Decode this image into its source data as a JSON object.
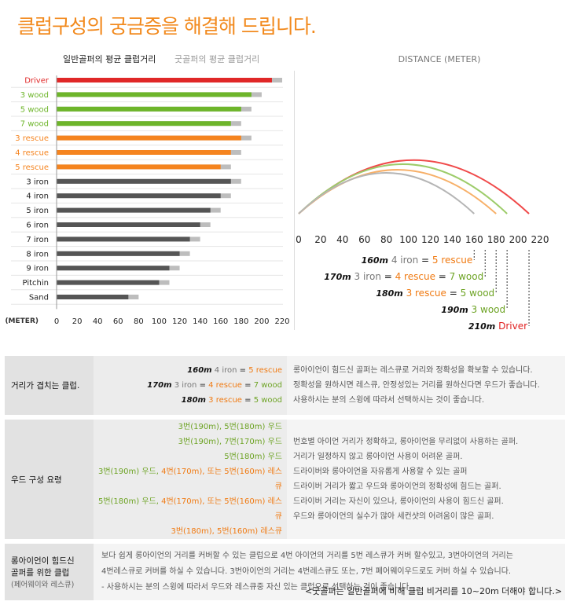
{
  "title": "클럽구성의 궁금증을 해결해 드립니다.",
  "colors": {
    "red": "#e02828",
    "green": "#6db52a",
    "orange": "#f5841f",
    "dark": "#555555",
    "light": "#bdbdbd",
    "arc_red": "#f04a4a",
    "arc_green": "#9dcc6a",
    "arc_orange": "#f7b069",
    "arc_gray": "#b5b5b5"
  },
  "chart_data": [
    {
      "type": "bar",
      "title": "",
      "legend": [
        "일반골퍼의 평균 클럽거리",
        "굿골퍼의 평균 클럽거리"
      ],
      "xlabel": "(METER)",
      "xlim": [
        0,
        220
      ],
      "xticks": [
        "0",
        "20",
        "40",
        "60",
        "80",
        "100",
        "120",
        "140",
        "160",
        "180",
        "200",
        "220"
      ],
      "categories": [
        "Driver",
        "3 wood",
        "5 wood",
        "7 wood",
        "3 rescue",
        "4 rescue",
        "5 rescue",
        "3 iron",
        "4 iron",
        "5 iron",
        "6 iron",
        "7 iron",
        "8 iron",
        "9 iron",
        "Pitchin",
        "Sand"
      ],
      "category_colors": [
        "red",
        "green",
        "green",
        "green",
        "orange",
        "orange",
        "orange",
        "dark",
        "dark",
        "dark",
        "dark",
        "dark",
        "dark",
        "dark",
        "dark",
        "dark"
      ],
      "series": [
        {
          "name": "일반골퍼의 평균 클럽거리",
          "values": [
            210,
            190,
            180,
            170,
            180,
            170,
            160,
            170,
            160,
            150,
            140,
            130,
            120,
            110,
            100,
            70
          ]
        },
        {
          "name": "굿골퍼의 평균 클럽거리",
          "values": [
            220,
            200,
            190,
            180,
            190,
            180,
            170,
            180,
            170,
            160,
            150,
            140,
            130,
            120,
            110,
            80
          ]
        }
      ]
    },
    {
      "type": "line",
      "title": "DISTANCE (METER)",
      "xlim": [
        0,
        220
      ],
      "xticks": [
        "0",
        "20",
        "40",
        "60",
        "80",
        "100",
        "120",
        "140",
        "160",
        "180",
        "200",
        "220"
      ],
      "series": [
        {
          "name": "Driver",
          "distance": 210,
          "apex": 105,
          "color": "arc_red"
        },
        {
          "name": "3 wood",
          "distance": 190,
          "apex": 97,
          "color": "arc_green"
        },
        {
          "name": "3 rescue",
          "distance": 180,
          "apex": 86,
          "color": "arc_orange"
        },
        {
          "name": "4 iron",
          "distance": 160,
          "apex": 80,
          "color": "arc_gray"
        }
      ],
      "annotations": [
        {
          "target": 160,
          "parts": [
            {
              "t": "160m",
              "c": "dist"
            },
            {
              "t": " 4 iron",
              "c": "c-gray"
            },
            {
              "t": " = ",
              "c": "c-black"
            },
            {
              "t": "5 rescue",
              "c": "c-orange"
            }
          ]
        },
        {
          "target": 170,
          "parts": [
            {
              "t": "170m",
              "c": "dist"
            },
            {
              "t": " 3 iron",
              "c": "c-gray"
            },
            {
              "t": " = ",
              "c": "c-black"
            },
            {
              "t": "4 rescue",
              "c": "c-orange"
            },
            {
              "t": " = ",
              "c": "c-black"
            },
            {
              "t": "7 wood",
              "c": "c-green"
            }
          ]
        },
        {
          "target": 180,
          "parts": [
            {
              "t": "180m",
              "c": "dist"
            },
            {
              "t": " 3 rescue",
              "c": "c-orange"
            },
            {
              "t": " = ",
              "c": "c-black"
            },
            {
              "t": "5 wood",
              "c": "c-green"
            }
          ]
        },
        {
          "target": 190,
          "parts": [
            {
              "t": "190m",
              "c": "dist"
            },
            {
              "t": "  3 wood",
              "c": "c-green"
            }
          ]
        },
        {
          "target": 210,
          "parts": [
            {
              "t": "210m",
              "c": "dist"
            },
            {
              "t": "  Driver",
              "c": "c-red"
            }
          ]
        }
      ]
    }
  ],
  "table": {
    "row1": {
      "header": "거리가 겹치는 클럽.",
      "mid": [
        [
          {
            "t": "160m",
            "c": "dist"
          },
          {
            "t": " 4 iron",
            "c": "c-gray"
          },
          {
            "t": " = ",
            "c": "c-black"
          },
          {
            "t": "5 rescue",
            "c": "c-orange"
          }
        ],
        [
          {
            "t": "170m",
            "c": "dist"
          },
          {
            "t": " 3 iron",
            "c": "c-gray"
          },
          {
            "t": " = ",
            "c": "c-black"
          },
          {
            "t": "4 rescue",
            "c": "c-orange"
          },
          {
            "t": " = ",
            "c": "c-black"
          },
          {
            "t": "7 wood",
            "c": "c-green"
          }
        ],
        [
          {
            "t": "180m",
            "c": "dist"
          },
          {
            "t": " 3 rescue",
            "c": "c-orange"
          },
          {
            "t": " = ",
            "c": "c-black"
          },
          {
            "t": "5 wood",
            "c": "c-green"
          }
        ]
      ],
      "right": [
        "롱아이언이 힘드신 골퍼는 레스큐로 거리와 정확성을 확보할 수 있습니다.",
        "정확성을 원하시면 레스큐, 안정성있는 거리를 원하신다면 우드가 좋습니다.",
        "사용하시는 분의 스윙에 따라서 선택하시는 것이 좋습니다."
      ]
    },
    "row2": {
      "header": "우드 구성 요령",
      "mid": [
        [
          {
            "t": "3번(190m), 5번(180m) 우드",
            "c": "c-green"
          }
        ],
        [
          {
            "t": "3번(190m), 7번(170m) 우드",
            "c": "c-green"
          }
        ],
        [
          {
            "t": "5번(180m) 우드",
            "c": "c-green"
          }
        ],
        [
          {
            "t": "3번(190m) 우드, ",
            "c": "c-green"
          },
          {
            "t": "4번(170m), 또는 5번(160m) 레스큐",
            "c": "c-orange"
          }
        ],
        [
          {
            "t": "5번(180m) 우드, ",
            "c": "c-green"
          },
          {
            "t": "4번(170m), 또는 5번(160m) 레스큐",
            "c": "c-orange"
          }
        ],
        [
          {
            "t": "3번(180m), 5번(160m) 레스큐",
            "c": "c-orange"
          }
        ]
      ],
      "right": [
        "번호별 아이언 거리가 정확하고, 롱아이언을 무리없이 사용하는 골퍼.",
        "거리가 일정하지 않고 롱아이언 사용이 어려운 골퍼.",
        "드라이버와 롱아이언을 자유롭게 사용할 수 있는 골퍼",
        "드라이버 거리가 짧고 우드와 롱아이언의 정확성에 힘드는 골퍼.",
        "드라이버 거리는 자신이 있으나, 롱아이언의 사용이 힘드신 골퍼.",
        "우드와 롱아이언의 실수가 많아 세컨샷의 어려움이 많은 골퍼."
      ]
    },
    "row3": {
      "header_lines": [
        "롱아이언이 힘드신",
        "골퍼를 위한 클럽"
      ],
      "header_sub": "(페어웨이와 레스큐)",
      "text": [
        "보다 쉽게 롱아이언의 거리를 커버할 수 있는 클럽으로 4번 아이언의 거리를 5번 레스큐가 커버 할수있고, 3번아이언의 거리는",
        "4번레스큐로 커버를 하실 수 있습니다. 3번아이언의 거리는 4번레스큐도 또는, 7번 페어웨이우드로도 커버 하실 수 있습니다.",
        "- 사용하시는 분의 스윙에 따라서 우드와 레스큐중 자신 있는 클럽으로 선택하는 것이 좋습니다."
      ]
    }
  },
  "footer": "<굿골퍼는 일반골퍼에 비해 클럽 비거리를 10~20m 더해야 합니다.>"
}
